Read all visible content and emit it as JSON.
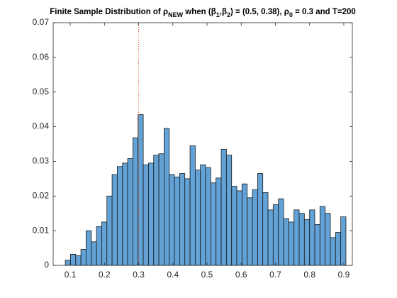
{
  "chart_data": {
    "type": "histogram",
    "title": [
      {
        "text": "Finite Sample Distribution of "
      },
      {
        "text": "ρ"
      },
      {
        "text": "NEW",
        "sub": true
      },
      {
        "text": " when ("
      },
      {
        "text": "β"
      },
      {
        "text": "1",
        "sub": true
      },
      {
        "text": ","
      },
      {
        "text": "β"
      },
      {
        "text": "2",
        "sub": true
      },
      {
        "text": ") = (0.5, 0.38), "
      },
      {
        "text": "ρ"
      },
      {
        "text": "0",
        "sub": true
      },
      {
        "text": " = 0.3 and T=200"
      }
    ],
    "bins": [
      0.0855,
      0.1007,
      0.1159,
      0.1311,
      0.1463,
      0.1615,
      0.1767,
      0.1919,
      0.2071,
      0.2223,
      0.2375,
      0.2527,
      0.2679,
      0.2831,
      0.2983,
      0.3135,
      0.3287,
      0.3439,
      0.3591,
      0.3743,
      0.3895,
      0.4047,
      0.4199,
      0.4351,
      0.4503,
      0.4655,
      0.4807,
      0.4959,
      0.5111,
      0.5263,
      0.5415,
      0.5567,
      0.5719,
      0.5871,
      0.6023,
      0.6175,
      0.6327,
      0.6479,
      0.6631,
      0.6783,
      0.6935,
      0.7087,
      0.7239,
      0.7391,
      0.7543,
      0.7695,
      0.7847,
      0.7999,
      0.8151,
      0.8303,
      0.8455,
      0.8607,
      0.8759,
      0.8911,
      0.9063
    ],
    "values": [
      0.0015,
      0.0032,
      0.0028,
      0.0046,
      0.01,
      0.0068,
      0.0112,
      0.0125,
      0.02,
      0.0262,
      0.0285,
      0.0295,
      0.0308,
      0.0368,
      0.0435,
      0.029,
      0.0295,
      0.0318,
      0.0322,
      0.0395,
      0.0262,
      0.0255,
      0.0265,
      0.025,
      0.0345,
      0.0275,
      0.029,
      0.0282,
      0.0238,
      0.0252,
      0.0335,
      0.0318,
      0.0228,
      0.0215,
      0.0235,
      0.0195,
      0.0218,
      0.0265,
      0.021,
      0.016,
      0.0175,
      0.0192,
      0.0135,
      0.0125,
      0.016,
      0.015,
      0.0132,
      0.016,
      0.0118,
      0.017,
      0.015,
      0.008,
      0.0095,
      0.014
    ],
    "color": "#62a2d6",
    "edge_color": "#1a1a1a",
    "reference_line": {
      "x": 0.3,
      "color": "#d95319"
    },
    "xlim": [
      0.05,
      0.925
    ],
    "xticks": [
      0.1,
      0.2,
      0.3,
      0.4,
      0.5,
      0.6,
      0.7,
      0.8,
      0.9
    ],
    "ylim": [
      0,
      0.07
    ],
    "yticks": [
      0,
      0.01,
      0.02,
      0.03,
      0.04,
      0.05,
      0.06,
      0.07
    ],
    "grid": false
  }
}
